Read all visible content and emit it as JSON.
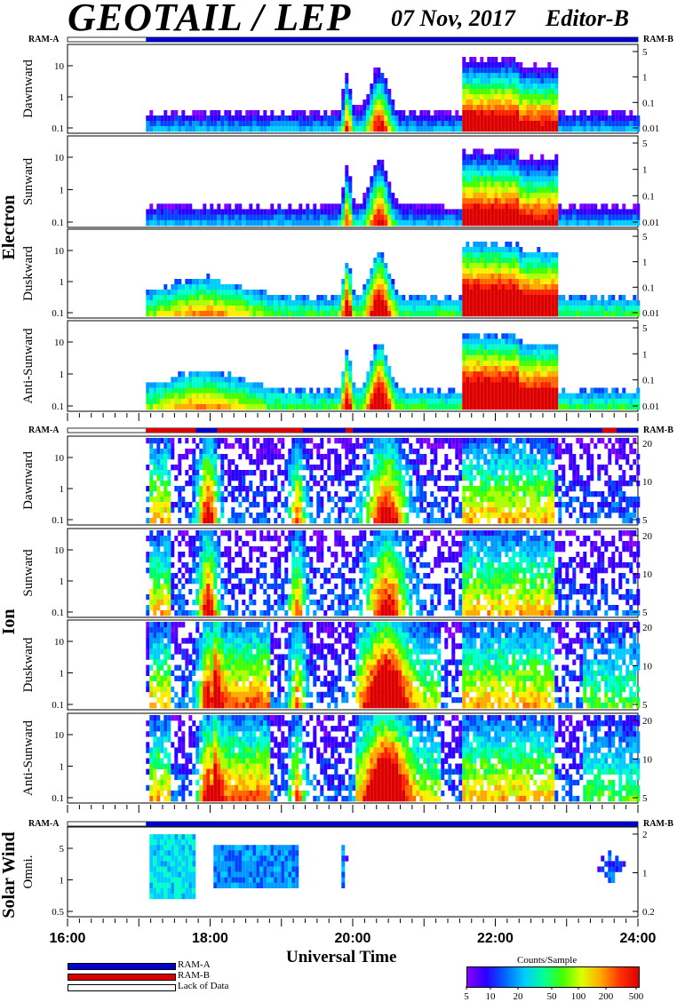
{
  "header": {
    "title": "GEOTAIL / LEP",
    "date": "07 Nov, 2017",
    "editor": "Editor-B"
  },
  "ram_labels": {
    "a": "RAM-A",
    "b": "RAM-B"
  },
  "sections": {
    "electron": "Electron",
    "ion": "Ion",
    "solar_wind": "Solar Wind"
  },
  "colors": {
    "ram_a": "#0000cc",
    "ram_b": "#dd0000",
    "lack_of_data": "#ffffff"
  },
  "x_axis": {
    "title": "Universal Time",
    "ticks": [
      "16:00",
      "18:00",
      "20:00",
      "22:00",
      "24:00"
    ]
  },
  "legend": {
    "ram_a": "RAM-A",
    "ram_b": "RAM-B",
    "lack": "Lack of Data"
  },
  "colorbar": {
    "title": "Counts/Sample",
    "ticks": [
      "5",
      "10",
      "20",
      "50",
      "100",
      "200",
      "500"
    ]
  },
  "chart_data": [
    {
      "type": "heatmap",
      "section": "Electron",
      "ylabel": "Dawnward",
      "left_ticks": [
        "10",
        "1",
        "0.1"
      ],
      "right_ticks": [
        "5",
        "1",
        "0.1",
        "0.01"
      ],
      "x_range": [
        "16:00",
        "24:00"
      ],
      "data_start": "17:05"
    },
    {
      "type": "heatmap",
      "section": "Electron",
      "ylabel": "Sunward",
      "left_ticks": [
        "10",
        "1",
        "0.1"
      ],
      "right_ticks": [
        "5",
        "1",
        "0.1",
        "0.01"
      ],
      "x_range": [
        "16:00",
        "24:00"
      ],
      "data_start": "17:05"
    },
    {
      "type": "heatmap",
      "section": "Electron",
      "ylabel": "Duskward",
      "left_ticks": [
        "10",
        "1",
        "0.1"
      ],
      "right_ticks": [
        "5",
        "1",
        "0.1",
        "0.01"
      ],
      "x_range": [
        "16:00",
        "24:00"
      ],
      "data_start": "17:05"
    },
    {
      "type": "heatmap",
      "section": "Electron",
      "ylabel": "Anti-Sunward",
      "left_ticks": [
        "10",
        "1",
        "0.1"
      ],
      "right_ticks": [
        "5",
        "1",
        "0.1",
        "0.01"
      ],
      "x_range": [
        "16:00",
        "24:00"
      ],
      "data_start": "17:05"
    },
    {
      "type": "heatmap",
      "section": "Ion",
      "ylabel": "Dawnward",
      "left_ticks": [
        "10",
        "1",
        "0.1"
      ],
      "right_ticks": [
        "20",
        "10",
        "5"
      ],
      "x_range": [
        "16:00",
        "24:00"
      ],
      "data_start": "17:05"
    },
    {
      "type": "heatmap",
      "section": "Ion",
      "ylabel": "Sunward",
      "left_ticks": [
        "10",
        "1",
        "0.1"
      ],
      "right_ticks": [
        "20",
        "10",
        "5"
      ],
      "x_range": [
        "16:00",
        "24:00"
      ],
      "data_start": "17:05"
    },
    {
      "type": "heatmap",
      "section": "Ion",
      "ylabel": "Duskward",
      "left_ticks": [
        "10",
        "1",
        "0.1"
      ],
      "right_ticks": [
        "20",
        "10",
        "5"
      ],
      "x_range": [
        "16:00",
        "24:00"
      ],
      "data_start": "17:05"
    },
    {
      "type": "heatmap",
      "section": "Ion",
      "ylabel": "Anti-Sunward",
      "left_ticks": [
        "10",
        "1",
        "0.1"
      ],
      "right_ticks": [
        "20",
        "10",
        "5"
      ],
      "x_range": [
        "16:00",
        "24:00"
      ],
      "data_start": "17:05"
    },
    {
      "type": "heatmap",
      "section": "Solar Wind",
      "ylabel": "Omni.",
      "left_ticks": [
        "5",
        "1",
        "0.5"
      ],
      "right_ticks": [
        "2",
        "1",
        "0.2"
      ],
      "x_range": [
        "16:00",
        "24:00"
      ],
      "data_start": "17:05"
    }
  ]
}
